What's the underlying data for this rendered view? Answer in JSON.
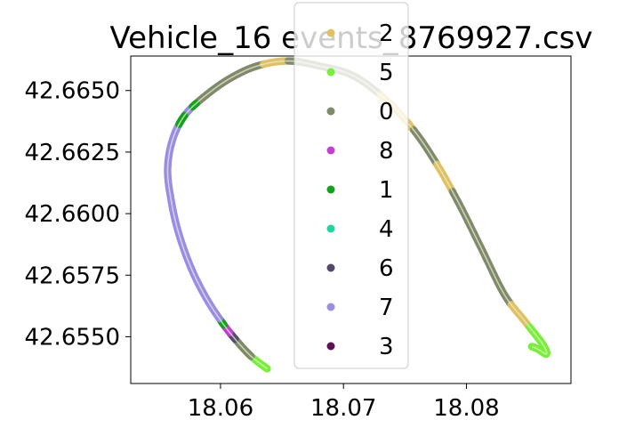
{
  "chart_data": {
    "type": "scatter",
    "title": "Vehicle_16 events_8769927.csv",
    "xlabel": "",
    "ylabel": "",
    "xlim": [
      18.0527,
      18.0885
    ],
    "ylim": [
      42.6531,
      42.6664
    ],
    "x_ticks": [
      18.06,
      18.07,
      18.08
    ],
    "x_tick_labels": [
      "18.06",
      "18.07",
      "18.08"
    ],
    "y_ticks": [
      42.655,
      42.6575,
      42.66,
      42.6625,
      42.665
    ],
    "y_tick_labels": [
      "42.6550",
      "42.6575",
      "42.6600",
      "42.6625",
      "42.6650"
    ],
    "grid": false,
    "legend_position": "upper-center",
    "legend": [
      {
        "label": "2",
        "color": "#e0c060"
      },
      {
        "label": "5",
        "color": "#77f03a"
      },
      {
        "label": "0",
        "color": "#7f8a6a"
      },
      {
        "label": "8",
        "color": "#c23fd2"
      },
      {
        "label": "1",
        "color": "#12a21c"
      },
      {
        "label": "4",
        "color": "#20d6a0"
      },
      {
        "label": "6",
        "color": "#56486a"
      },
      {
        "label": "7",
        "color": "#9b8ce4"
      },
      {
        "label": "3",
        "color": "#5c1356"
      }
    ],
    "path": [
      [
        18.0638,
        42.6537
      ],
      [
        18.0625,
        42.6542
      ],
      [
        18.0612,
        42.6549
      ],
      [
        18.0601,
        42.6556
      ],
      [
        18.0588,
        42.6566
      ],
      [
        18.0576,
        42.6578
      ],
      [
        18.0566,
        42.6592
      ],
      [
        18.056,
        42.6605
      ],
      [
        18.0557,
        42.6618
      ],
      [
        18.0561,
        42.663
      ],
      [
        18.0571,
        42.664
      ],
      [
        18.0588,
        42.6648
      ],
      [
        18.0608,
        42.6655
      ],
      [
        18.063,
        42.666
      ],
      [
        18.0655,
        42.6662
      ],
      [
        18.068,
        42.666
      ],
      [
        18.0708,
        42.6656
      ],
      [
        18.0735,
        42.6646
      ],
      [
        18.0757,
        42.6634
      ],
      [
        18.0776,
        42.662
      ],
      [
        18.0794,
        42.6604
      ],
      [
        18.0812,
        42.6586
      ],
      [
        18.0831,
        42.6567
      ],
      [
        18.0848,
        42.6556
      ],
      [
        18.0862,
        42.6547
      ],
      [
        18.0865,
        42.6543
      ],
      [
        18.0858,
        42.6545
      ],
      [
        18.0853,
        42.6546
      ]
    ],
    "segments": [
      {
        "category": "5",
        "from": 0,
        "to": 2
      },
      {
        "category": "0",
        "from": 1,
        "to": 2
      },
      {
        "category": "6",
        "from": 2,
        "to": 2.4
      },
      {
        "category": "8",
        "from": 2.4,
        "to": 3
      },
      {
        "category": "1",
        "from": 2.85,
        "to": 3.15
      },
      {
        "category": "7",
        "from": 3.15,
        "to": 10.6
      },
      {
        "category": "1",
        "from": 9.6,
        "to": 10
      },
      {
        "category": "0",
        "from": 10.6,
        "to": 13.2
      },
      {
        "category": "1",
        "from": 10.4,
        "to": 10.6
      },
      {
        "category": "2",
        "from": 13.2,
        "to": 14
      },
      {
        "category": "0",
        "from": 14,
        "to": 16.8
      },
      {
        "category": "2",
        "from": 16.8,
        "to": 18
      },
      {
        "category": "0",
        "from": 18,
        "to": 19
      },
      {
        "category": "2",
        "from": 19,
        "to": 19.7
      },
      {
        "category": "0",
        "from": 19.7,
        "to": 22.3
      },
      {
        "category": "2",
        "from": 22.3,
        "to": 23.2
      },
      {
        "category": "5",
        "from": 23.2,
        "to": 27
      }
    ]
  }
}
